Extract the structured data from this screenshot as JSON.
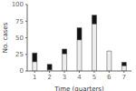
{
  "chart_data": {
    "type": "bar",
    "stacked": true,
    "categories": [
      1,
      2,
      3,
      4,
      5,
      6,
      7
    ],
    "series": [
      {
        "color": "#eeeeee",
        "values": [
          14,
          2,
          26,
          47,
          71,
          30,
          8
        ]
      },
      {
        "color": "#111111",
        "values": [
          13,
          8,
          7,
          18,
          13,
          0,
          5
        ]
      }
    ],
    "xlabel": "Time (quarters)",
    "ylabel": "No. cases",
    "ylim": [
      0,
      100
    ],
    "yticks": [
      0,
      25,
      50,
      75,
      100
    ]
  }
}
